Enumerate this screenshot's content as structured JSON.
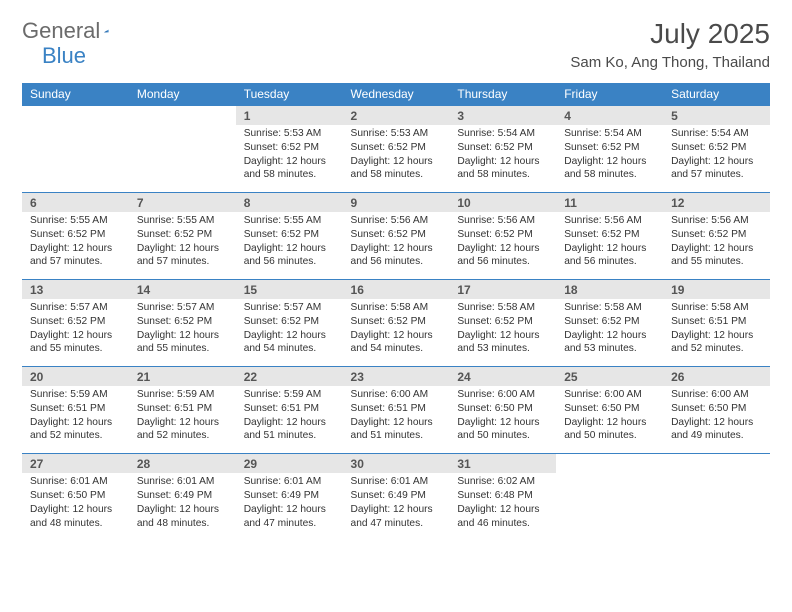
{
  "logo": {
    "text1": "General",
    "text2": "Blue"
  },
  "title": "July 2025",
  "location": "Sam Ko, Ang Thong, Thailand",
  "colors": {
    "brand": "#3a82c4",
    "header_bg": "#3a82c4",
    "header_fg": "#ffffff",
    "daynum_bg": "#e6e6e6",
    "rule": "#3a82c4",
    "text": "#333333",
    "logo_gray": "#6b6b6b"
  },
  "day_headers": [
    "Sunday",
    "Monday",
    "Tuesday",
    "Wednesday",
    "Thursday",
    "Friday",
    "Saturday"
  ],
  "weeks": [
    {
      "nums": [
        "",
        "",
        "1",
        "2",
        "3",
        "4",
        "5"
      ],
      "cells": [
        null,
        null,
        {
          "sunrise": "5:53 AM",
          "sunset": "6:52 PM",
          "daylight": "12 hours and 58 minutes."
        },
        {
          "sunrise": "5:53 AM",
          "sunset": "6:52 PM",
          "daylight": "12 hours and 58 minutes."
        },
        {
          "sunrise": "5:54 AM",
          "sunset": "6:52 PM",
          "daylight": "12 hours and 58 minutes."
        },
        {
          "sunrise": "5:54 AM",
          "sunset": "6:52 PM",
          "daylight": "12 hours and 58 minutes."
        },
        {
          "sunrise": "5:54 AM",
          "sunset": "6:52 PM",
          "daylight": "12 hours and 57 minutes."
        }
      ]
    },
    {
      "nums": [
        "6",
        "7",
        "8",
        "9",
        "10",
        "11",
        "12"
      ],
      "cells": [
        {
          "sunrise": "5:55 AM",
          "sunset": "6:52 PM",
          "daylight": "12 hours and 57 minutes."
        },
        {
          "sunrise": "5:55 AM",
          "sunset": "6:52 PM",
          "daylight": "12 hours and 57 minutes."
        },
        {
          "sunrise": "5:55 AM",
          "sunset": "6:52 PM",
          "daylight": "12 hours and 56 minutes."
        },
        {
          "sunrise": "5:56 AM",
          "sunset": "6:52 PM",
          "daylight": "12 hours and 56 minutes."
        },
        {
          "sunrise": "5:56 AM",
          "sunset": "6:52 PM",
          "daylight": "12 hours and 56 minutes."
        },
        {
          "sunrise": "5:56 AM",
          "sunset": "6:52 PM",
          "daylight": "12 hours and 56 minutes."
        },
        {
          "sunrise": "5:56 AM",
          "sunset": "6:52 PM",
          "daylight": "12 hours and 55 minutes."
        }
      ]
    },
    {
      "nums": [
        "13",
        "14",
        "15",
        "16",
        "17",
        "18",
        "19"
      ],
      "cells": [
        {
          "sunrise": "5:57 AM",
          "sunset": "6:52 PM",
          "daylight": "12 hours and 55 minutes."
        },
        {
          "sunrise": "5:57 AM",
          "sunset": "6:52 PM",
          "daylight": "12 hours and 55 minutes."
        },
        {
          "sunrise": "5:57 AM",
          "sunset": "6:52 PM",
          "daylight": "12 hours and 54 minutes."
        },
        {
          "sunrise": "5:58 AM",
          "sunset": "6:52 PM",
          "daylight": "12 hours and 54 minutes."
        },
        {
          "sunrise": "5:58 AM",
          "sunset": "6:52 PM",
          "daylight": "12 hours and 53 minutes."
        },
        {
          "sunrise": "5:58 AM",
          "sunset": "6:52 PM",
          "daylight": "12 hours and 53 minutes."
        },
        {
          "sunrise": "5:58 AM",
          "sunset": "6:51 PM",
          "daylight": "12 hours and 52 minutes."
        }
      ]
    },
    {
      "nums": [
        "20",
        "21",
        "22",
        "23",
        "24",
        "25",
        "26"
      ],
      "cells": [
        {
          "sunrise": "5:59 AM",
          "sunset": "6:51 PM",
          "daylight": "12 hours and 52 minutes."
        },
        {
          "sunrise": "5:59 AM",
          "sunset": "6:51 PM",
          "daylight": "12 hours and 52 minutes."
        },
        {
          "sunrise": "5:59 AM",
          "sunset": "6:51 PM",
          "daylight": "12 hours and 51 minutes."
        },
        {
          "sunrise": "6:00 AM",
          "sunset": "6:51 PM",
          "daylight": "12 hours and 51 minutes."
        },
        {
          "sunrise": "6:00 AM",
          "sunset": "6:50 PM",
          "daylight": "12 hours and 50 minutes."
        },
        {
          "sunrise": "6:00 AM",
          "sunset": "6:50 PM",
          "daylight": "12 hours and 50 minutes."
        },
        {
          "sunrise": "6:00 AM",
          "sunset": "6:50 PM",
          "daylight": "12 hours and 49 minutes."
        }
      ]
    },
    {
      "nums": [
        "27",
        "28",
        "29",
        "30",
        "31",
        "",
        ""
      ],
      "cells": [
        {
          "sunrise": "6:01 AM",
          "sunset": "6:50 PM",
          "daylight": "12 hours and 48 minutes."
        },
        {
          "sunrise": "6:01 AM",
          "sunset": "6:49 PM",
          "daylight": "12 hours and 48 minutes."
        },
        {
          "sunrise": "6:01 AM",
          "sunset": "6:49 PM",
          "daylight": "12 hours and 47 minutes."
        },
        {
          "sunrise": "6:01 AM",
          "sunset": "6:49 PM",
          "daylight": "12 hours and 47 minutes."
        },
        {
          "sunrise": "6:02 AM",
          "sunset": "6:48 PM",
          "daylight": "12 hours and 46 minutes."
        },
        null,
        null
      ]
    }
  ],
  "labels": {
    "sunrise": "Sunrise:",
    "sunset": "Sunset:",
    "daylight": "Daylight:"
  }
}
